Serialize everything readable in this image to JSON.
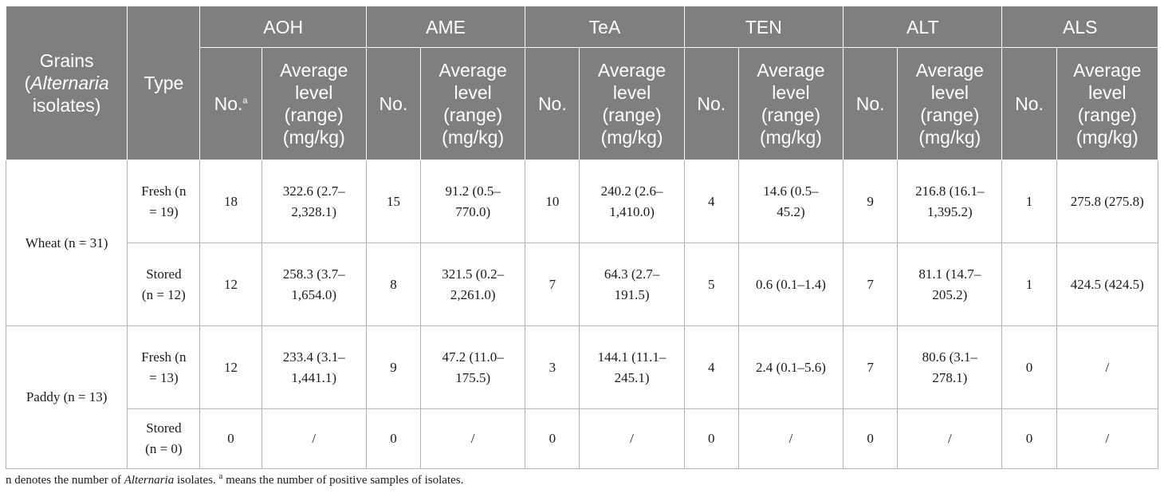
{
  "table": {
    "header": {
      "grains": "Grains",
      "grains_italic": "Alternaria",
      "grains_tail": "isolates)",
      "type": "Type",
      "groups": [
        "AOH",
        "AME",
        "TeA",
        "TEN",
        "ALT",
        "ALS"
      ],
      "no_label": "No.",
      "no_sup": "a",
      "avg_label": "Average level (range) (mg/kg)"
    },
    "grain_groups": [
      {
        "label": "Wheat (n = 31)"
      },
      {
        "label": "Paddy (n = 13)"
      }
    ],
    "rows": [
      {
        "type": "Fresh (n = 19)",
        "cells": [
          "18",
          "322.6 (2.7–2,328.1)",
          "15",
          "91.2 (0.5–770.0)",
          "10",
          "240.2 (2.6–1,410.0)",
          "4",
          "14.6 (0.5–45.2)",
          "9",
          "216.8 (16.1–1,395.2)",
          "1",
          "275.8 (275.8)"
        ]
      },
      {
        "type": "Stored (n = 12)",
        "cells": [
          "12",
          "258.3 (3.7–1,654.0)",
          "8",
          "321.5 (0.2–2,261.0)",
          "7",
          "64.3 (2.7–191.5)",
          "5",
          "0.6 (0.1–1.4)",
          "7",
          "81.1 (14.7–205.2)",
          "1",
          "424.5 (424.5)"
        ]
      },
      {
        "type": "Fresh (n = 13)",
        "cells": [
          "12",
          "233.4 (3.1–1,441.1)",
          "9",
          "47.2 (11.0–175.5)",
          "3",
          "144.1 (11.1–245.1)",
          "4",
          "2.4 (0.1–5.6)",
          "7",
          "80.6 (3.1–278.1)",
          "0",
          "/"
        ]
      },
      {
        "type": "Stored (n = 0)",
        "cells": [
          "0",
          "/",
          "0",
          "/",
          "0",
          "/",
          "0",
          "/",
          "0",
          "/",
          "0",
          "/"
        ]
      }
    ]
  },
  "footnote": {
    "part1": "n denotes the number of ",
    "italic": "Alternaria",
    "part2": " isolates. ",
    "sup": "a",
    "part3": " means the number of positive samples of isolates."
  }
}
